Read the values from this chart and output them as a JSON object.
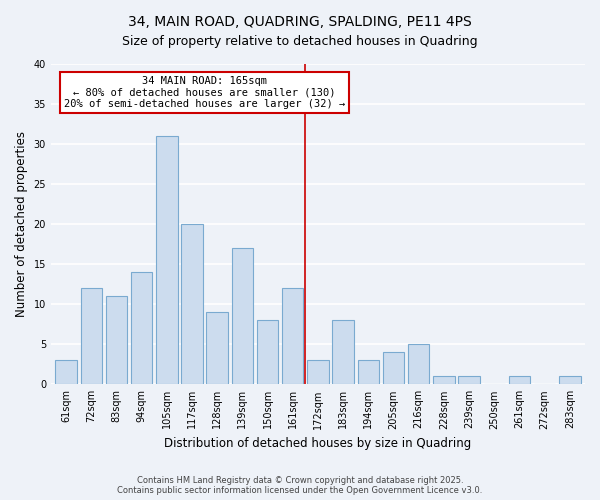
{
  "title": "34, MAIN ROAD, QUADRING, SPALDING, PE11 4PS",
  "subtitle": "Size of property relative to detached houses in Quadring",
  "xlabel": "Distribution of detached houses by size in Quadring",
  "ylabel": "Number of detached properties",
  "bar_labels": [
    "61sqm",
    "72sqm",
    "83sqm",
    "94sqm",
    "105sqm",
    "117sqm",
    "128sqm",
    "139sqm",
    "150sqm",
    "161sqm",
    "172sqm",
    "183sqm",
    "194sqm",
    "205sqm",
    "216sqm",
    "228sqm",
    "239sqm",
    "250sqm",
    "261sqm",
    "272sqm",
    "283sqm"
  ],
  "bar_values": [
    3,
    12,
    11,
    14,
    31,
    20,
    9,
    17,
    8,
    12,
    3,
    8,
    3,
    4,
    5,
    1,
    1,
    0,
    1,
    0,
    1
  ],
  "bar_color": "#ccdcee",
  "bar_edge_color": "#7aaad0",
  "vline_x": 9.5,
  "vline_color": "#cc0000",
  "annotation_text": "34 MAIN ROAD: 165sqm\n← 80% of detached houses are smaller (130)\n20% of semi-detached houses are larger (32) →",
  "annotation_box_edge_color": "#cc0000",
  "annotation_box_face_color": "#ffffff",
  "ylim": [
    0,
    40
  ],
  "yticks": [
    0,
    5,
    10,
    15,
    20,
    25,
    30,
    35,
    40
  ],
  "background_color": "#eef2f8",
  "grid_color": "#ffffff",
  "title_fontsize": 10,
  "subtitle_fontsize": 9,
  "axis_label_fontsize": 8.5,
  "tick_fontsize": 7,
  "annotation_fontsize": 7.5,
  "footer_text": "Contains HM Land Registry data © Crown copyright and database right 2025.\nContains public sector information licensed under the Open Government Licence v3.0.",
  "footer_fontsize": 6
}
